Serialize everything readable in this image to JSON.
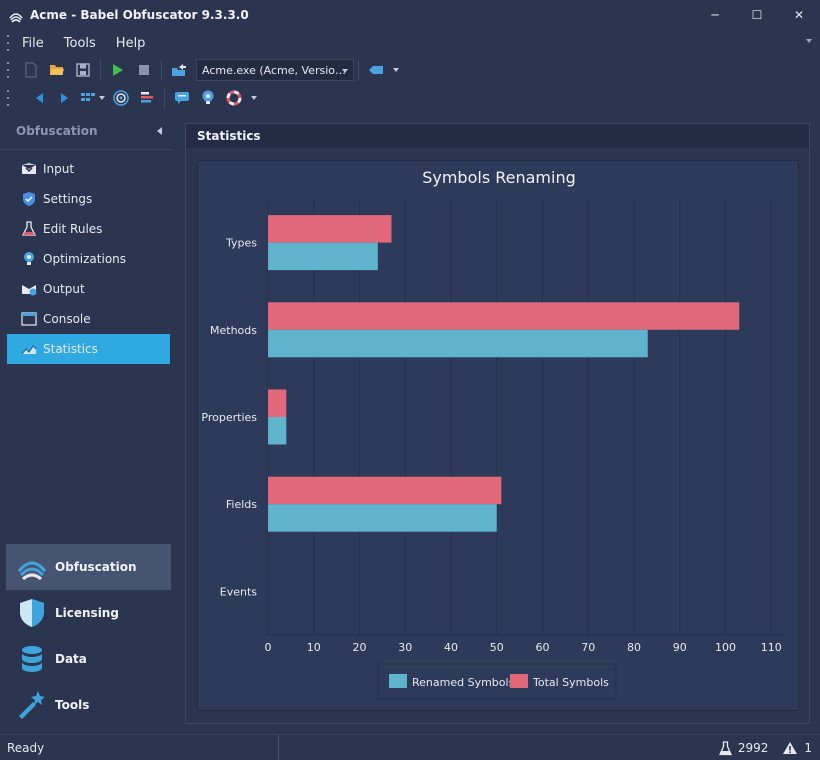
{
  "window": {
    "title": "Acme -  Babel Obfuscator 9.3.3.0",
    "controls": {
      "minimize": "─",
      "maximize": "☐",
      "close": "✕"
    }
  },
  "menu": {
    "items": [
      "File",
      "Tools",
      "Help"
    ]
  },
  "toolbar": {
    "assembly_select": "Acme.exe (Acme, Versio…",
    "icons": [
      "new-file-icon",
      "open-folder-icon",
      "save-icon",
      "run-icon",
      "stop-icon",
      "export-icon",
      "tag-icon",
      "back-arrow-icon",
      "forward-arrow-icon",
      "view-grid-icon",
      "target-icon",
      "list-icon",
      "comment-icon",
      "bulb-icon",
      "lifebuoy-icon"
    ]
  },
  "sidebar": {
    "header": "Obfuscation",
    "items": [
      {
        "label": "Input",
        "icon": "input-icon"
      },
      {
        "label": "Settings",
        "icon": "shield-check-icon"
      },
      {
        "label": "Edit Rules",
        "icon": "flask-icon"
      },
      {
        "label": "Optimizations",
        "icon": "bulb-icon"
      },
      {
        "label": "Output",
        "icon": "output-icon"
      },
      {
        "label": "Console",
        "icon": "console-icon"
      },
      {
        "label": "Statistics",
        "icon": "chart-icon"
      }
    ],
    "active_item": "Statistics",
    "sections": [
      {
        "label": "Obfuscation",
        "icon": "obfuscation-waves-icon"
      },
      {
        "label": "Licensing",
        "icon": "shield-icon"
      },
      {
        "label": "Data",
        "icon": "database-icon"
      },
      {
        "label": "Tools",
        "icon": "magic-wand-icon"
      }
    ],
    "active_section": "Obfuscation"
  },
  "panel": {
    "title": "Statistics"
  },
  "chart_data": {
    "type": "bar",
    "orientation": "horizontal",
    "title": "Symbols Renaming",
    "categories": [
      "Types",
      "Methods",
      "Properties",
      "Fields",
      "Events"
    ],
    "series": [
      {
        "name": "Renamed Symbols",
        "color": "#5fb3cc",
        "values": [
          24,
          83,
          4,
          50,
          0
        ]
      },
      {
        "name": "Total Symbols",
        "color": "#e0687a",
        "values": [
          27,
          103,
          4,
          51,
          0
        ]
      }
    ],
    "xticks": [
      "0",
      "10",
      "20",
      "30",
      "40",
      "50",
      "60",
      "70",
      "80",
      "90",
      "100",
      "110"
    ],
    "xlim": [
      0,
      113
    ],
    "grid": true,
    "legend": "bottom"
  },
  "status": {
    "text": "Ready",
    "rules_count": "2992",
    "warnings_count": "1"
  },
  "colors": {
    "background": "#2b3550",
    "accent": "#2fa9e0",
    "chart_bg": "#2e3a5a"
  }
}
